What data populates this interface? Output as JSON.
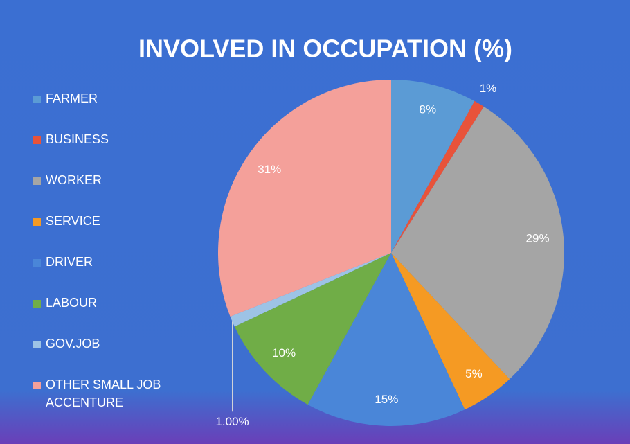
{
  "chart_data": {
    "type": "pie",
    "title": "INVOLVED IN OCCUPATION (%)",
    "categories": [
      "FARMER",
      "BUSINESS",
      "WORKER",
      "SERVICE",
      "DRIVER",
      "LABOUR",
      "GOV.JOB",
      "OTHER SMALL JOB ACCENTURE"
    ],
    "values": [
      8,
      1,
      29,
      5,
      15,
      10,
      1,
      31
    ],
    "value_labels": [
      "8%",
      "1%",
      "29%",
      "5%",
      "15%",
      "10%",
      "1.00%",
      "31%"
    ],
    "colors": [
      "#5b9bd5",
      "#e8533a",
      "#a5a5a5",
      "#f59a23",
      "#4a86d8",
      "#70ad47",
      "#9dc3e6",
      "#f4a09a"
    ],
    "legend": "left"
  }
}
